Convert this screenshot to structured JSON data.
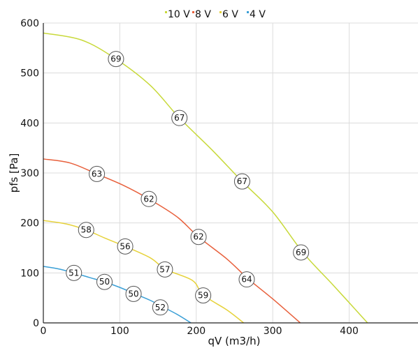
{
  "chart_data": {
    "type": "line",
    "title": "",
    "xlabel": "qV (m3/h)",
    "ylabel": "pfs [Pa]",
    "xlim": [
      0,
      490
    ],
    "ylim": [
      0,
      600
    ],
    "xticks": [
      0,
      100,
      200,
      300,
      400
    ],
    "yticks": [
      0,
      100,
      200,
      300,
      400,
      500,
      600
    ],
    "grid": true,
    "legend_position": "top-center",
    "series": [
      {
        "name": "10 V",
        "color": "#c8d93a",
        "points": [
          [
            0,
            580
          ],
          [
            50,
            566
          ],
          [
            95,
            528
          ],
          [
            140,
            475
          ],
          [
            178,
            410
          ],
          [
            220,
            347
          ],
          [
            260,
            283
          ],
          [
            300,
            222
          ],
          [
            340,
            140
          ],
          [
            380,
            74
          ],
          [
            424,
            0
          ]
        ],
        "labels": [
          {
            "x": 95,
            "y": 528,
            "text": "69"
          },
          {
            "x": 178,
            "y": 410,
            "text": "67"
          },
          {
            "x": 260,
            "y": 283,
            "text": "67"
          },
          {
            "x": 337,
            "y": 141,
            "text": "69"
          }
        ]
      },
      {
        "name": "8 V",
        "color": "#e8603c",
        "points": [
          [
            0,
            328
          ],
          [
            35,
            320
          ],
          [
            70,
            298
          ],
          [
            105,
            275
          ],
          [
            138,
            248
          ],
          [
            175,
            212
          ],
          [
            203,
            172
          ],
          [
            240,
            128
          ],
          [
            268,
            88
          ],
          [
            300,
            48
          ],
          [
            336,
            0
          ]
        ],
        "labels": [
          {
            "x": 70,
            "y": 298,
            "text": "63"
          },
          {
            "x": 138,
            "y": 248,
            "text": "62"
          },
          {
            "x": 203,
            "y": 172,
            "text": "62"
          },
          {
            "x": 266,
            "y": 87,
            "text": "64"
          }
        ]
      },
      {
        "name": "6 V",
        "color": "#e6d23a",
        "points": [
          [
            0,
            205
          ],
          [
            30,
            198
          ],
          [
            56,
            186
          ],
          [
            80,
            170
          ],
          [
            107,
            153
          ],
          [
            140,
            130
          ],
          [
            160,
            107
          ],
          [
            195,
            85
          ],
          [
            209,
            56
          ],
          [
            240,
            26
          ],
          [
            262,
            0
          ]
        ],
        "labels": [
          {
            "x": 56,
            "y": 186,
            "text": "58"
          },
          {
            "x": 107,
            "y": 153,
            "text": "56"
          },
          {
            "x": 159,
            "y": 107,
            "text": "57"
          },
          {
            "x": 209,
            "y": 55,
            "text": "59"
          }
        ]
      },
      {
        "name": "4 V",
        "color": "#3a9fd6",
        "points": [
          [
            0,
            113
          ],
          [
            20,
            108
          ],
          [
            40,
            100
          ],
          [
            60,
            91
          ],
          [
            80,
            82
          ],
          [
            100,
            71
          ],
          [
            120,
            58
          ],
          [
            140,
            45
          ],
          [
            155,
            33
          ],
          [
            175,
            17
          ],
          [
            193,
            0
          ]
        ],
        "labels": [
          {
            "x": 40,
            "y": 100,
            "text": "51"
          },
          {
            "x": 80,
            "y": 82,
            "text": "50"
          },
          {
            "x": 118,
            "y": 58,
            "text": "50"
          },
          {
            "x": 153,
            "y": 31,
            "text": "52"
          }
        ]
      }
    ]
  }
}
